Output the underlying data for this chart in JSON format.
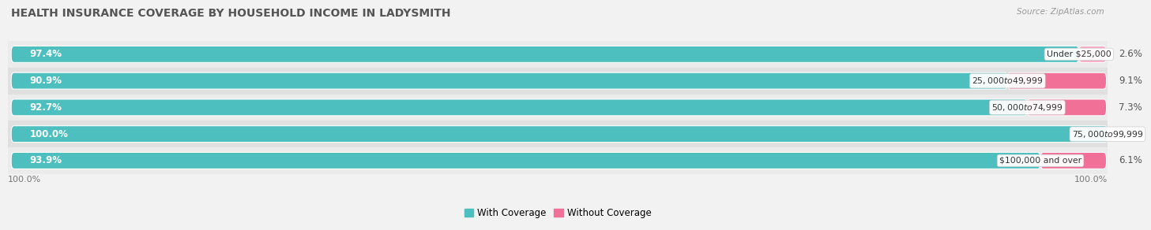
{
  "title": "HEALTH INSURANCE COVERAGE BY HOUSEHOLD INCOME IN LADYSMITH",
  "source": "Source: ZipAtlas.com",
  "categories": [
    "Under $25,000",
    "$25,000 to $49,999",
    "$50,000 to $74,999",
    "$75,000 to $99,999",
    "$100,000 and over"
  ],
  "with_coverage": [
    97.4,
    90.9,
    92.7,
    100.0,
    93.9
  ],
  "without_coverage": [
    2.6,
    9.1,
    7.3,
    0.0,
    6.1
  ],
  "teal_color": "#4dbfbf",
  "pink_color_light": "#f5a8bf",
  "pink_color_dark": "#f07098",
  "row_bg_even": "#ebebeb",
  "row_bg_odd": "#e0e0e0",
  "title_fontsize": 10,
  "label_fontsize": 8.5,
  "cat_fontsize": 7.8,
  "legend_fontsize": 8.5,
  "x_edge_label": "100.0%"
}
